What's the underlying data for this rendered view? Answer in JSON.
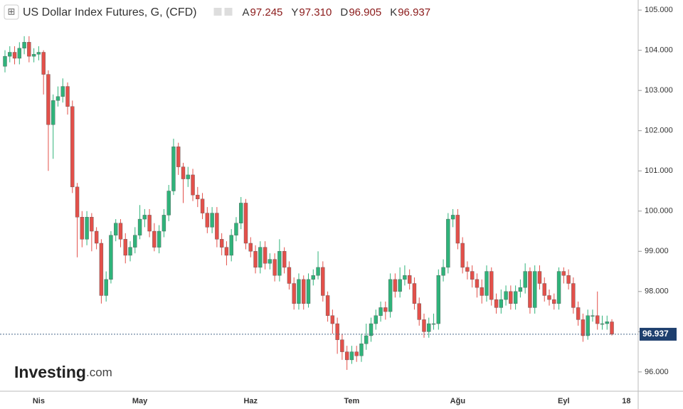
{
  "chart_data": {
    "type": "candlestick",
    "title": "US Dollar Index Futures, G, (CFD)",
    "readout": [
      {
        "key": "A",
        "value": 97.245,
        "label": "97.245"
      },
      {
        "key": "Y",
        "value": 97.31,
        "label": "97.310"
      },
      {
        "key": "D",
        "value": 96.905,
        "label": "96.905"
      },
      {
        "key": "K",
        "value": 96.937,
        "label": "96.937"
      }
    ],
    "logo": [
      "Investing",
      ".com"
    ],
    "up_color": "#2fb37a",
    "down_color": "#e3504a",
    "ylim": [
      95.52,
      105.25
    ],
    "yticks": [
      {
        "value": 96,
        "label": "96.000"
      },
      {
        "value": 97,
        "label": "97.000"
      },
      {
        "value": 98,
        "label": "98.000"
      },
      {
        "value": 99,
        "label": "99.000"
      },
      {
        "value": 100,
        "label": "100.000"
      },
      {
        "value": 101,
        "label": "101.000"
      },
      {
        "value": 102,
        "label": "102.000"
      },
      {
        "value": 103,
        "label": "103.000"
      },
      {
        "value": 104,
        "label": "104.000"
      },
      {
        "value": 105,
        "label": "105.000"
      }
    ],
    "categories": [
      null,
      null,
      null,
      null,
      null,
      null,
      null,
      "Nis",
      null,
      null,
      null,
      null,
      null,
      null,
      null,
      null,
      null,
      null,
      null,
      null,
      null,
      null,
      null,
      null,
      null,
      null,
      null,
      null,
      "May",
      null,
      null,
      null,
      null,
      null,
      null,
      null,
      null,
      null,
      null,
      null,
      null,
      null,
      null,
      null,
      null,
      null,
      null,
      null,
      null,
      null,
      null,
      "Haz",
      null,
      null,
      null,
      null,
      null,
      null,
      null,
      null,
      null,
      null,
      null,
      null,
      null,
      null,
      null,
      null,
      null,
      null,
      null,
      null,
      "Tem",
      null,
      null,
      null,
      null,
      null,
      null,
      null,
      null,
      null,
      null,
      null,
      null,
      null,
      null,
      null,
      null,
      null,
      null,
      null,
      null,
      null,
      "Ağu",
      null,
      null,
      null,
      null,
      null,
      null,
      null,
      null,
      null,
      null,
      null,
      null,
      null,
      null,
      null,
      null,
      null,
      null,
      null,
      null,
      null,
      "Eyl",
      null,
      null,
      null,
      null,
      null,
      null,
      null,
      null,
      null,
      null,
      null,
      null,
      "18"
    ],
    "open": [
      103.6,
      103.85,
      103.95,
      103.8,
      104.05,
      104.2,
      103.85,
      103.9,
      103.95,
      103.4,
      102.15,
      102.75,
      102.85,
      103.1,
      102.6,
      100.6,
      99.85,
      99.3,
      99.85,
      99.5,
      99.2,
      97.9,
      98.3,
      99.4,
      99.7,
      99.3,
      98.9,
      99.1,
      99.4,
      99.8,
      99.9,
      99.5,
      99.1,
      99.5,
      99.9,
      100.5,
      101.6,
      101.1,
      100.8,
      100.9,
      100.4,
      100.3,
      99.95,
      99.6,
      99.95,
      99.3,
      99.1,
      98.9,
      99.4,
      99.7,
      100.2,
      99.2,
      99.0,
      98.6,
      99.1,
      98.7,
      98.8,
      98.4,
      99.0,
      98.6,
      98.2,
      97.7,
      98.3,
      97.7,
      98.3,
      98.4,
      98.6,
      97.9,
      97.4,
      97.2,
      96.8,
      96.5,
      96.3,
      96.5,
      96.4,
      96.7,
      96.9,
      97.2,
      97.4,
      97.6,
      97.5,
      98.3,
      98.0,
      98.3,
      98.4,
      98.2,
      97.7,
      97.3,
      97.0,
      97.2,
      97.2,
      98.4,
      98.6,
      99.8,
      99.9,
      99.2,
      98.6,
      98.5,
      98.3,
      98.1,
      97.9,
      98.5,
      97.8,
      97.6,
      97.8,
      98.0,
      97.7,
      98.0,
      98.1,
      98.5,
      97.6,
      98.5,
      98.2,
      97.9,
      97.8,
      97.7,
      98.5,
      98.4,
      98.2,
      97.6,
      97.3,
      96.9,
      97.4,
      97.4,
      97.2,
      97.2,
      97.245,
      null,
      null,
      null
    ],
    "high": [
      104.0,
      104.1,
      104.1,
      104.2,
      104.35,
      104.35,
      104.05,
      104.1,
      104.0,
      103.5,
      102.9,
      103.1,
      103.3,
      103.2,
      102.75,
      100.7,
      100.0,
      100.0,
      99.95,
      99.6,
      99.3,
      98.5,
      99.5,
      99.8,
      99.8,
      99.45,
      99.25,
      99.6,
      100.15,
      100.05,
      100.05,
      99.7,
      99.65,
      100.05,
      100.65,
      101.8,
      101.7,
      101.2,
      101.1,
      101.05,
      100.6,
      100.45,
      100.1,
      100.1,
      100.1,
      99.45,
      99.25,
      99.55,
      99.85,
      100.35,
      100.3,
      99.35,
      99.15,
      99.25,
      99.25,
      98.95,
      98.95,
      99.3,
      99.1,
      98.75,
      98.35,
      98.45,
      98.4,
      98.45,
      98.55,
      99.0,
      98.75,
      98.0,
      97.55,
      97.35,
      96.95,
      96.65,
      96.65,
      96.65,
      96.95,
      97.2,
      97.35,
      97.55,
      97.75,
      97.75,
      98.45,
      98.45,
      98.6,
      98.65,
      98.55,
      98.35,
      97.85,
      97.45,
      97.35,
      97.45,
      98.55,
      98.8,
      99.95,
      100.05,
      100.05,
      99.35,
      98.75,
      98.65,
      98.45,
      98.3,
      98.65,
      98.6,
      97.95,
      98.05,
      98.15,
      98.15,
      98.15,
      98.3,
      98.7,
      98.6,
      98.65,
      98.65,
      98.35,
      98.05,
      97.95,
      98.6,
      98.6,
      98.55,
      98.35,
      97.75,
      97.45,
      97.55,
      97.55,
      98.0,
      97.4,
      97.4,
      97.31,
      null,
      null,
      null
    ],
    "low": [
      103.45,
      103.7,
      103.65,
      103.65,
      103.9,
      103.7,
      103.7,
      103.75,
      102.9,
      101.0,
      101.3,
      102.6,
      102.7,
      102.4,
      100.45,
      98.85,
      99.1,
      99.15,
      99.0,
      99.05,
      97.7,
      97.75,
      98.2,
      99.25,
      99.1,
      98.7,
      98.75,
      98.95,
      99.3,
      99.6,
      99.35,
      99.0,
      98.95,
      99.35,
      99.75,
      100.4,
      100.9,
      100.2,
      100.6,
      100.25,
      100.1,
      99.8,
      99.45,
      99.45,
      99.1,
      98.9,
      98.65,
      98.75,
      99.25,
      99.55,
      99.05,
      98.85,
      98.45,
      98.45,
      98.55,
      98.55,
      98.25,
      98.25,
      98.45,
      98.05,
      97.55,
      97.55,
      97.55,
      97.6,
      98.15,
      98.3,
      97.75,
      97.25,
      96.95,
      96.45,
      96.3,
      96.05,
      96.2,
      96.25,
      96.25,
      96.55,
      96.75,
      97.05,
      97.25,
      97.3,
      97.35,
      97.85,
      97.85,
      98.15,
      98.05,
      97.55,
      97.15,
      96.85,
      96.85,
      97.05,
      97.05,
      98.25,
      98.45,
      99.6,
      99.05,
      98.45,
      98.3,
      98.1,
      97.85,
      97.7,
      97.75,
      97.65,
      97.45,
      97.45,
      97.65,
      97.55,
      97.55,
      97.85,
      97.95,
      97.45,
      97.45,
      98.05,
      97.75,
      97.65,
      97.55,
      97.55,
      98.2,
      98.05,
      97.45,
      97.15,
      96.75,
      96.8,
      97.25,
      97.05,
      97.05,
      97.05,
      96.905,
      null,
      null,
      null
    ],
    "close": [
      103.85,
      103.95,
      103.8,
      104.05,
      104.2,
      103.85,
      103.9,
      103.95,
      103.4,
      102.15,
      102.75,
      102.85,
      103.1,
      102.6,
      100.6,
      99.85,
      99.3,
      99.85,
      99.5,
      99.2,
      97.9,
      98.3,
      99.4,
      99.7,
      99.3,
      98.9,
      99.1,
      99.4,
      99.8,
      99.9,
      99.5,
      99.1,
      99.5,
      99.9,
      100.5,
      101.6,
      101.1,
      100.8,
      100.9,
      100.4,
      100.3,
      99.95,
      99.6,
      99.95,
      99.3,
      99.1,
      98.9,
      99.4,
      99.7,
      100.2,
      99.2,
      99.0,
      98.6,
      99.1,
      98.7,
      98.8,
      98.4,
      99.0,
      98.6,
      98.2,
      97.7,
      98.3,
      97.7,
      98.3,
      98.4,
      98.6,
      97.9,
      97.4,
      97.2,
      96.8,
      96.5,
      96.3,
      96.5,
      96.4,
      96.7,
      96.9,
      97.2,
      97.4,
      97.6,
      97.5,
      98.3,
      98.0,
      98.3,
      98.4,
      98.2,
      97.7,
      97.3,
      97.0,
      97.2,
      97.2,
      98.4,
      98.6,
      99.8,
      99.9,
      99.2,
      98.6,
      98.5,
      98.3,
      98.1,
      97.9,
      98.5,
      97.8,
      97.6,
      97.8,
      98.0,
      97.7,
      98.0,
      98.1,
      98.5,
      97.6,
      98.5,
      98.2,
      97.9,
      97.8,
      97.7,
      98.5,
      98.4,
      98.2,
      97.6,
      97.3,
      96.9,
      97.4,
      97.4,
      97.2,
      97.2,
      97.25,
      96.937,
      null,
      null,
      null
    ]
  }
}
